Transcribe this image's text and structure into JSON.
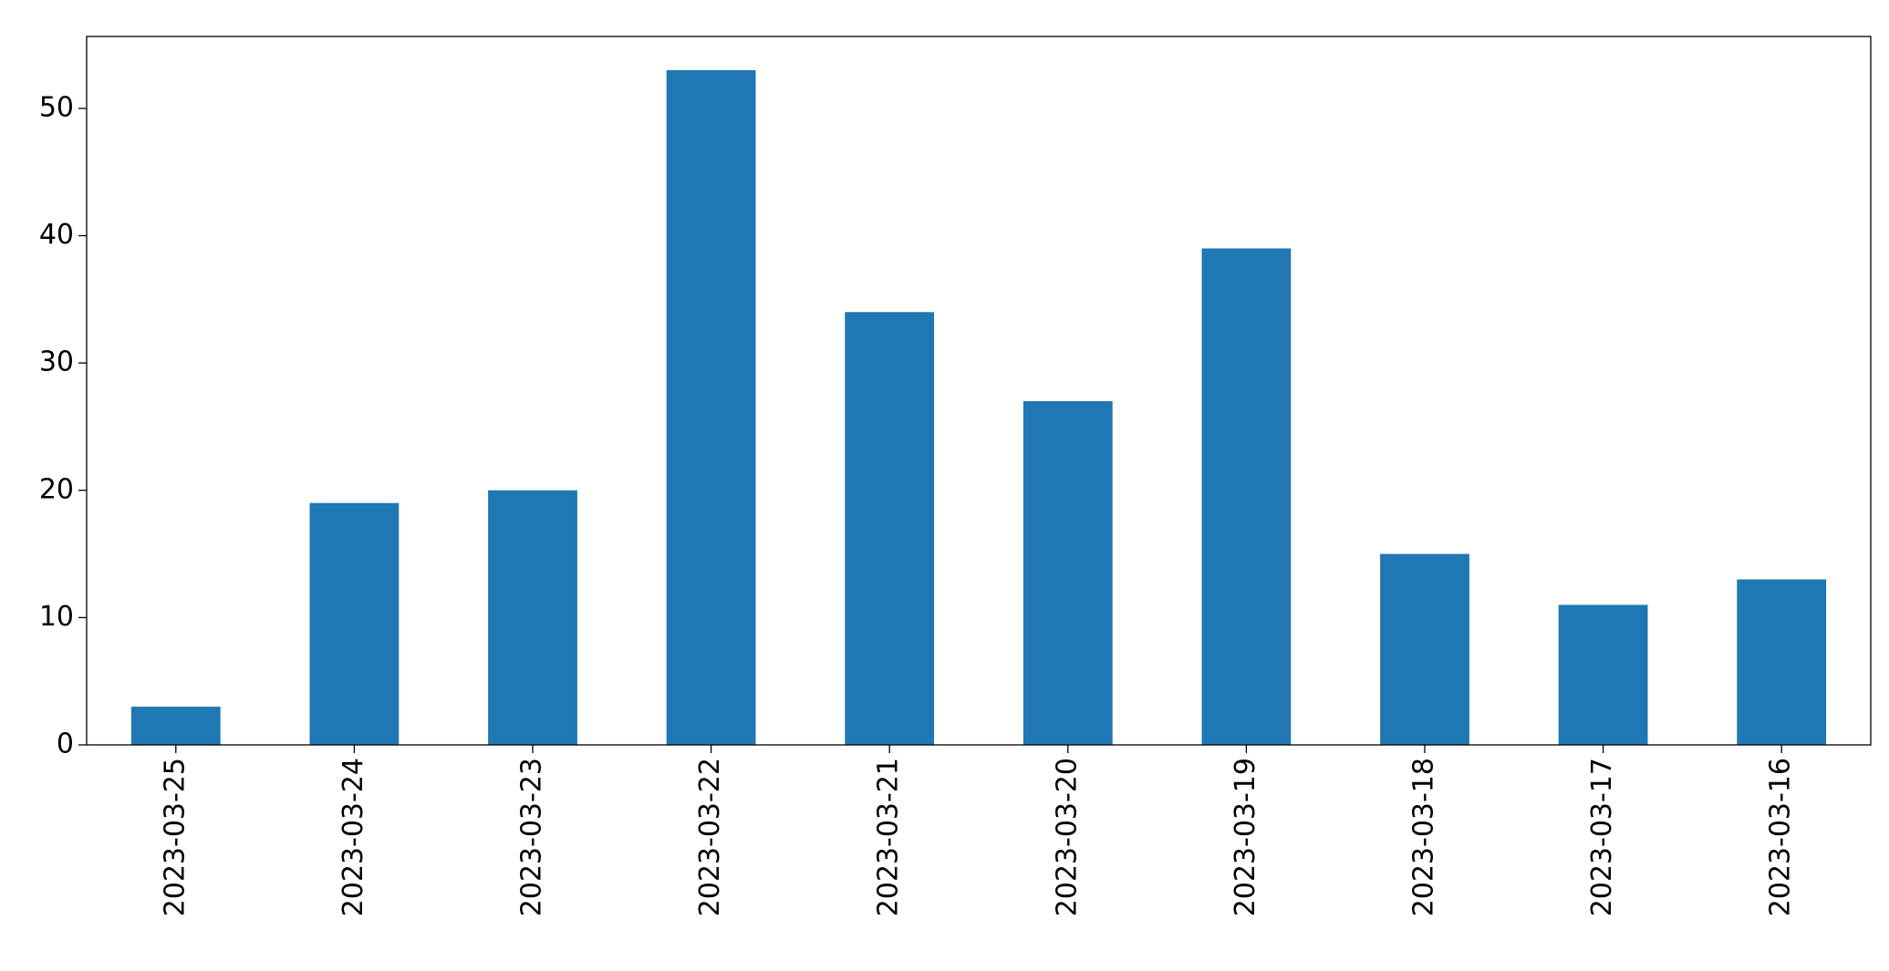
{
  "chart_data": {
    "type": "bar",
    "categories": [
      "2023-03-25",
      "2023-03-24",
      "2023-03-23",
      "2023-03-22",
      "2023-03-21",
      "2023-03-20",
      "2023-03-19",
      "2023-03-18",
      "2023-03-17",
      "2023-03-16"
    ],
    "values": [
      3,
      19,
      20,
      53,
      34,
      27,
      39,
      15,
      11,
      13
    ],
    "color": "#1f77b4",
    "ylim": [
      0,
      55.65
    ],
    "yticks": [
      0,
      10,
      20,
      30,
      40,
      50
    ],
    "grid": false
  }
}
